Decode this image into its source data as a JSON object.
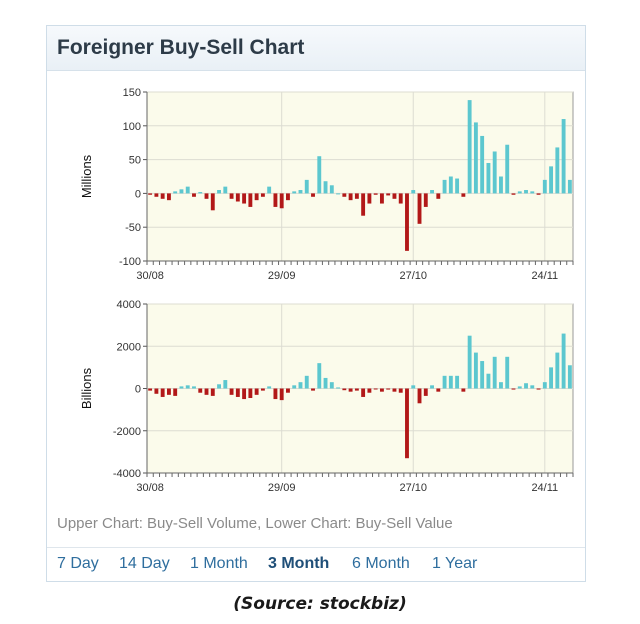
{
  "title": "Foreigner Buy-Sell Chart",
  "caption": "Upper Chart: Buy-Sell Volume, Lower Chart: Buy-Sell Value",
  "periods": [
    {
      "label": "7 Day",
      "active": false
    },
    {
      "label": "14 Day",
      "active": false
    },
    {
      "label": "1 Month",
      "active": false
    },
    {
      "label": "3 Month",
      "active": true
    },
    {
      "label": "6 Month",
      "active": false
    },
    {
      "label": "1 Year",
      "active": false
    }
  ],
  "source": "(Source: stockbiz)",
  "colors": {
    "positive": "#5cc7cf",
    "negative": "#b21818",
    "plot_background": "#fbfbeb",
    "grid": "#dcdcd2",
    "period_link": "#2f6e9e"
  },
  "chart_data": [
    {
      "type": "bar",
      "title": "",
      "xlabel": "",
      "ylabel": "Millions",
      "ylim": [
        -100,
        150
      ],
      "yticks": [
        150,
        100,
        50,
        0,
        -50,
        -100
      ],
      "ytick_labels": [
        "150",
        "100",
        "50",
        "0",
        "-50",
        "-100"
      ],
      "xtick_labels": [
        "30/08",
        "29/09",
        "27/10",
        "24/11"
      ],
      "xtick_index": [
        0,
        21,
        42,
        63
      ],
      "grid": true,
      "values": [
        -2,
        -5,
        -8,
        -10,
        3,
        6,
        10,
        -5,
        2,
        -8,
        -25,
        5,
        10,
        -8,
        -12,
        -15,
        -20,
        -10,
        -5,
        10,
        -20,
        -22,
        -10,
        3,
        5,
        20,
        -5,
        55,
        18,
        12,
        0,
        -5,
        -10,
        -8,
        -33,
        -15,
        -2,
        -15,
        -3,
        -8,
        -15,
        -85,
        5,
        -45,
        -20,
        5,
        -8,
        20,
        25,
        22,
        -5,
        138,
        105,
        85,
        45,
        62,
        25,
        72,
        -2,
        3,
        5,
        3,
        -2,
        20,
        40,
        68,
        110,
        20
      ]
    },
    {
      "type": "bar",
      "title": "",
      "xlabel": "",
      "ylabel": "Billions",
      "ylim": [
        -4000,
        4000
      ],
      "yticks": [
        4000,
        2000,
        0,
        -2000,
        -4000
      ],
      "ytick_labels": [
        "4000",
        "2000",
        "0",
        "-2000",
        "-4000"
      ],
      "xtick_labels": [
        "30/08",
        "29/09",
        "27/10",
        "24/11"
      ],
      "xtick_index": [
        0,
        21,
        42,
        63
      ],
      "grid": true,
      "values": [
        -100,
        -250,
        -400,
        -300,
        -350,
        100,
        150,
        100,
        -200,
        -300,
        -350,
        200,
        400,
        -300,
        -400,
        -500,
        -450,
        -300,
        -100,
        100,
        -500,
        -550,
        -200,
        150,
        300,
        600,
        -100,
        1200,
        500,
        300,
        50,
        -80,
        -150,
        -100,
        -400,
        -200,
        -30,
        -150,
        -50,
        -150,
        -200,
        -3300,
        150,
        -700,
        -350,
        150,
        -150,
        600,
        600,
        600,
        -150,
        2500,
        1700,
        1300,
        700,
        1500,
        300,
        1500,
        -50,
        100,
        250,
        150,
        -50,
        300,
        1000,
        1700,
        2600,
        1100
      ]
    }
  ]
}
